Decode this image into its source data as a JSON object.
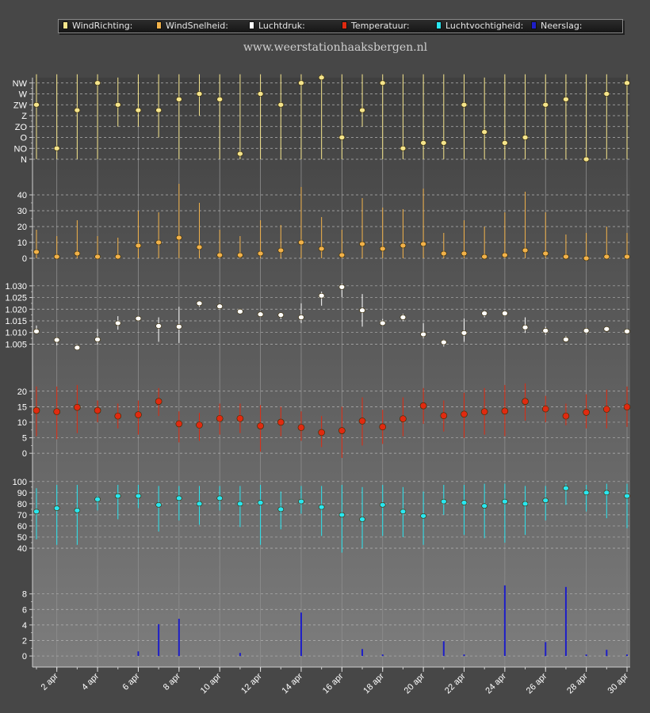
{
  "site_title": "www.weerstationhaaksbergen.nl",
  "legend": [
    {
      "label": "WindRichting:",
      "color": "#f5e58c"
    },
    {
      "label": "WindSnelheid:",
      "color": "#f2b24a"
    },
    {
      "label": "Luchtdruk:",
      "color": "#ffffff"
    },
    {
      "label": "Temperatuur:",
      "color": "#e02a10"
    },
    {
      "label": "Luchtvochtigheid:",
      "color": "#29e6f0"
    },
    {
      "label": "Neerslag:",
      "color": "#1e1ec8"
    }
  ],
  "chart_data": {
    "type": "multi-panel",
    "days": [
      1,
      2,
      3,
      4,
      5,
      6,
      7,
      8,
      9,
      10,
      11,
      12,
      13,
      14,
      15,
      16,
      17,
      18,
      19,
      20,
      21,
      22,
      23,
      24,
      25,
      26,
      27,
      28,
      29,
      30
    ],
    "x_tick_labels": [
      "2 apr",
      "4 apr",
      "6 apr",
      "8 apr",
      "10 apr",
      "12 apr",
      "14 apr",
      "16 apr",
      "18 apr",
      "20 apr",
      "22 apr",
      "24 apr",
      "26 apr",
      "28 apr",
      "30 apr"
    ],
    "x_tick_days": [
      2,
      4,
      6,
      8,
      10,
      12,
      14,
      16,
      18,
      20,
      22,
      24,
      26,
      28,
      30
    ],
    "panels": [
      {
        "name": "WindRichting",
        "color": "#f5e58c",
        "kind": "category",
        "ticks": [
          "N",
          "NO",
          "O",
          "ZO",
          "Z",
          "ZW",
          "W",
          "NW"
        ],
        "tick_values": [
          0,
          1,
          2,
          3,
          4,
          5,
          6,
          7
        ],
        "ylim": [
          0,
          7.2
        ],
        "values": [
          5,
          1,
          4.5,
          7,
          5,
          4.5,
          4.5,
          5.5,
          6,
          5.5,
          0.5,
          6,
          5,
          7,
          7.5,
          2,
          4.5,
          7,
          1,
          1.5,
          1.5,
          5,
          2.5,
          1.5,
          2,
          5,
          5.5,
          0,
          6,
          7
        ],
        "low": [
          0,
          0,
          0,
          0,
          3,
          3,
          2,
          0,
          4,
          0,
          0,
          0,
          0,
          0,
          0,
          0,
          3,
          0,
          0,
          0,
          0,
          0,
          0,
          0,
          0,
          0,
          0,
          0,
          0,
          0
        ],
        "high": [
          7.8,
          7.8,
          7.8,
          7.8,
          7.5,
          7.8,
          7.8,
          7.8,
          7.8,
          7.8,
          7.8,
          7.8,
          7.8,
          7.8,
          7.8,
          7.8,
          7.8,
          7.8,
          7.8,
          7.8,
          7.8,
          7.8,
          7.5,
          7.8,
          7.8,
          7.8,
          7.8,
          7.8,
          7.8,
          7.8
        ]
      },
      {
        "name": "WindSnelheid",
        "color": "#f2b24a",
        "kind": "numeric",
        "tick_values": [
          0,
          10,
          20,
          30,
          40
        ],
        "tick_labels": [
          "0",
          "10",
          "20",
          "30",
          "40"
        ],
        "ylim": [
          0,
          48
        ],
        "values": [
          4,
          1,
          3,
          1,
          1,
          8,
          10,
          13,
          7,
          2,
          2,
          3,
          5,
          10,
          6,
          2,
          9,
          6,
          8,
          9,
          3,
          3,
          1,
          2,
          5,
          3,
          1,
          0,
          1,
          1
        ],
        "low": [
          0,
          0,
          0,
          0,
          0,
          0,
          0,
          0,
          0,
          0,
          0,
          0,
          0,
          0,
          0,
          0,
          0,
          0,
          0,
          0,
          0,
          0,
          0,
          0,
          0,
          0,
          0,
          0,
          0,
          0
        ],
        "high": [
          18,
          14,
          24,
          14,
          13,
          30,
          29,
          47,
          35,
          18,
          14,
          24,
          21,
          45,
          26,
          18,
          38,
          32,
          31,
          44,
          16,
          24,
          20,
          29,
          42,
          29,
          15,
          16,
          20,
          16
        ]
      },
      {
        "name": "Luchtdruk",
        "color": "#ffffff",
        "kind": "numeric",
        "tick_values": [
          1.005,
          1.01,
          1.015,
          1.02,
          1.025,
          1.03
        ],
        "tick_labels": [
          "1.005",
          "1.010",
          "1.015",
          "1.020",
          "1.025",
          "1.030"
        ],
        "ylim": [
          0.998,
          1.033
        ],
        "values": [
          1.0105,
          1.0068,
          1.0035,
          1.007,
          1.014,
          1.016,
          1.0128,
          1.0125,
          1.0225,
          1.0212,
          1.019,
          1.0178,
          1.0175,
          1.0165,
          1.0258,
          1.0295,
          1.0195,
          1.014,
          1.0165,
          1.0092,
          1.0058,
          1.0098,
          1.0182,
          1.0182,
          1.0122,
          1.0108,
          1.007,
          1.0108,
          1.0115,
          1.0105
        ],
        "low": [
          1.0095,
          1.0045,
          1.003,
          1.0048,
          1.0112,
          1.0155,
          1.006,
          1.0055,
          1.021,
          1.02,
          1.018,
          1.0168,
          1.0158,
          1.014,
          1.0215,
          1.0252,
          1.0125,
          1.013,
          1.0148,
          1.0075,
          1.004,
          1.006,
          1.0165,
          1.017,
          1.0098,
          1.009,
          1.0062,
          1.0092,
          1.0108,
          1.0095
        ],
        "high": [
          1.013,
          1.008,
          1.0045,
          1.0115,
          1.017,
          1.0168,
          1.0165,
          1.021,
          1.023,
          1.022,
          1.02,
          1.0185,
          1.0185,
          1.0225,
          1.0275,
          1.031,
          1.0265,
          1.0158,
          1.018,
          1.014,
          1.007,
          1.016,
          1.0195,
          1.0195,
          1.0165,
          1.0125,
          1.0085,
          1.012,
          1.0125,
          1.0115
        ]
      },
      {
        "name": "Temperatuur",
        "color": "#e02a10",
        "kind": "numeric",
        "tick_values": [
          0,
          5,
          10,
          15,
          20
        ],
        "tick_labels": [
          "0",
          "5",
          "10",
          "15",
          "20"
        ],
        "ylim": [
          -2,
          23
        ],
        "values": [
          13.8,
          13.4,
          14.8,
          13.8,
          12.0,
          12.4,
          16.7,
          9.5,
          9.1,
          11.2,
          11.2,
          8.8,
          10.0,
          8.3,
          6.7,
          7.3,
          10.4,
          8.5,
          11.1,
          15.3,
          12.1,
          12.6,
          13.4,
          13.6,
          16.7,
          14.3,
          12.0,
          13.2,
          14.2,
          14.9
        ],
        "low": [
          5.5,
          4.5,
          6.5,
          10.0,
          8.0,
          6.0,
          12.0,
          3.5,
          4.0,
          6.0,
          6.5,
          0.5,
          5.5,
          4.0,
          2.0,
          -1.5,
          2.5,
          3.0,
          5.5,
          9.5,
          7.0,
          5.0,
          6.0,
          5.5,
          10.5,
          10.0,
          9.0,
          8.0,
          8.0,
          8.5
        ],
        "high": [
          21.5,
          21.5,
          22.0,
          17.0,
          16.0,
          17.0,
          21.0,
          13.5,
          13.0,
          16.0,
          16.0,
          15.5,
          15.0,
          13.5,
          12.0,
          15.0,
          18.0,
          14.0,
          18.0,
          21.0,
          17.0,
          19.5,
          21.0,
          22.0,
          22.5,
          18.5,
          16.0,
          19.0,
          20.5,
          21.5
        ]
      },
      {
        "name": "Luchtvochtigheid",
        "color": "#29e6f0",
        "kind": "numeric",
        "tick_values": [
          40,
          50,
          60,
          70,
          80,
          90,
          100
        ],
        "tick_labels": [
          "40",
          "50",
          "60",
          "70",
          "80",
          "90",
          "100"
        ],
        "ylim": [
          30,
          102
        ],
        "values": [
          73,
          76,
          74,
          84,
          87,
          87,
          79,
          85,
          80,
          85,
          80,
          81,
          75,
          82,
          77,
          70,
          66,
          79,
          73,
          69,
          82,
          81,
          78,
          82,
          80,
          83,
          94,
          90,
          90,
          87
        ],
        "low": [
          48,
          43,
          43,
          74,
          66,
          76,
          55,
          65,
          61,
          74,
          59,
          43,
          57,
          71,
          51,
          36,
          40,
          51,
          50,
          43,
          70,
          52,
          49,
          45,
          52,
          65,
          79,
          73,
          67,
          58
        ],
        "high": [
          94,
          97,
          97,
          87,
          97,
          97,
          96,
          96,
          96,
          96,
          96,
          97,
          91,
          96,
          96,
          97,
          95,
          97,
          95,
          91,
          97,
          97,
          98,
          98,
          96,
          96,
          98,
          97,
          98,
          98
        ]
      },
      {
        "name": "Neerslag",
        "color": "#1e1ec8",
        "kind": "bar",
        "tick_values": [
          0,
          2,
          4,
          6,
          8
        ],
        "tick_labels": [
          "0",
          "2",
          "4",
          "6",
          "8"
        ],
        "ylim": [
          -0.3,
          9.5
        ],
        "values": [
          0,
          0,
          0,
          0,
          0,
          0.6,
          4.1,
          4.8,
          0,
          0,
          0.4,
          0,
          0,
          5.6,
          0,
          0,
          0.9,
          0.2,
          0,
          0,
          1.9,
          0.2,
          0,
          9.1,
          0,
          1.8,
          8.9,
          0.2,
          0.8,
          0.2
        ]
      }
    ]
  }
}
